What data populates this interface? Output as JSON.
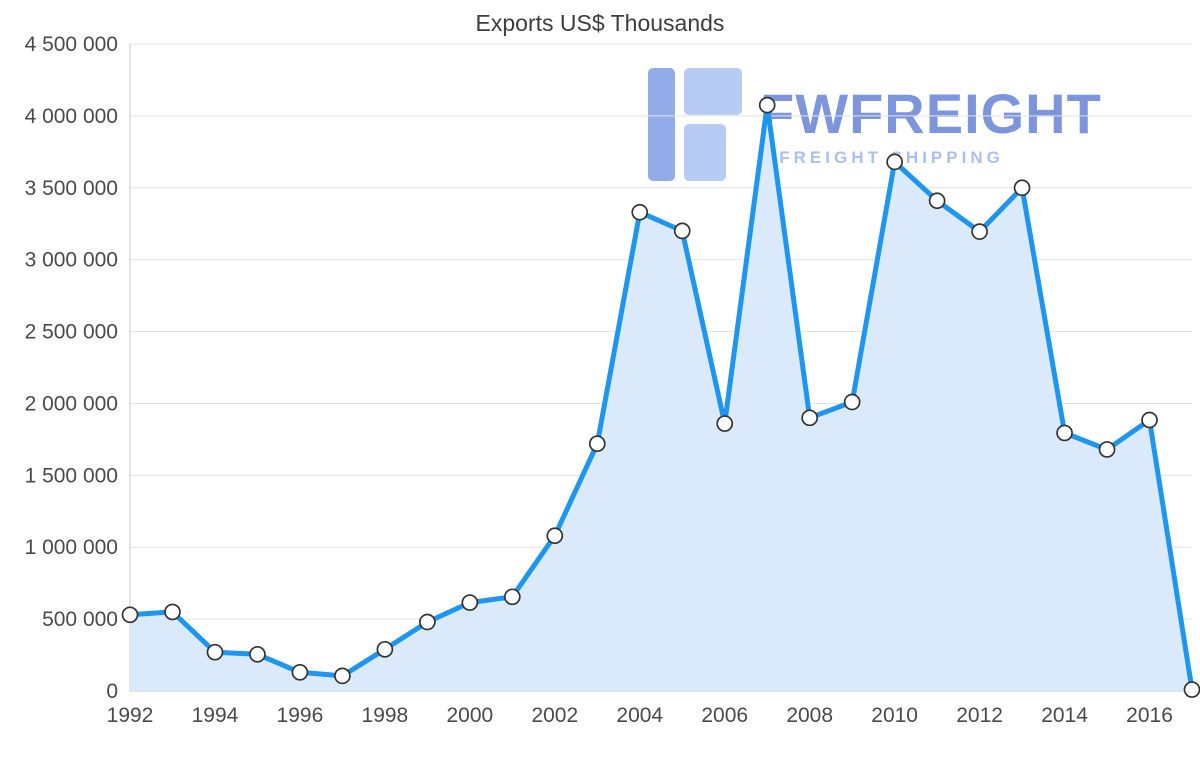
{
  "title": "Exports US$ Thousands",
  "watermark": {
    "brand": "FWFREIGHT",
    "tagline": "FREIGHT SHIPPING",
    "brand_color": "#7d95dc",
    "tagline_color": "#a9c1ef",
    "logo_dark_color": "#92abe9",
    "logo_light_color": "#b7cbf4"
  },
  "chart_data": {
    "type": "area",
    "title": "Exports US$ Thousands",
    "x": [
      1992,
      1993,
      1994,
      1995,
      1996,
      1997,
      1998,
      1999,
      2000,
      2001,
      2002,
      2003,
      2004,
      2005,
      2006,
      2007,
      2008,
      2009,
      2010,
      2011,
      2012,
      2013,
      2014,
      2015,
      2016,
      2017
    ],
    "values": [
      530000,
      550000,
      270000,
      255000,
      130000,
      105000,
      290000,
      480000,
      615000,
      655000,
      1080000,
      1720000,
      3330000,
      3200000,
      1860000,
      4075000,
      1900000,
      2010000,
      3680000,
      3410000,
      3195000,
      3500000,
      1795000,
      1680000,
      1885000,
      10000
    ],
    "xticks": [
      1992,
      1994,
      1996,
      1998,
      2000,
      2002,
      2004,
      2006,
      2008,
      2010,
      2012,
      2014,
      2016
    ],
    "yticks": [
      0,
      500000,
      1000000,
      1500000,
      2000000,
      2500000,
      3000000,
      3500000,
      4000000,
      4500000
    ],
    "xlim": [
      1992,
      2017
    ],
    "ylim": [
      0,
      4500000
    ],
    "grid": "horizontal",
    "legend": "none",
    "line_color": "#1e96f0",
    "area_color": "#daeafb",
    "marker_fill": "#ffffff",
    "marker_stroke": "#333333",
    "grid_color": "#e3e3e3",
    "axis_color": "#c9c9c9",
    "xlabel": "",
    "ylabel": ""
  }
}
